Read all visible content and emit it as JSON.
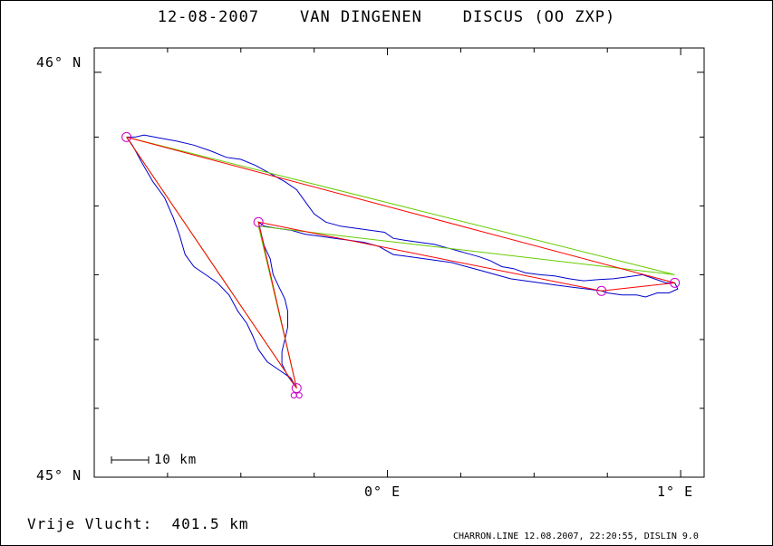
{
  "chart_data": {
    "type": "line",
    "title": "12-08-2007    VAN DINGENEN    DISCUS (OO ZXP)",
    "x_axis": {
      "min": -1.0,
      "max": 1.08,
      "ticks": [
        {
          "value": 0,
          "label": "0° E"
        },
        {
          "value": 1,
          "label": "1° E"
        }
      ]
    },
    "y_axis": {
      "min": 45.0,
      "max": 46.06,
      "ticks": [
        {
          "value": 45,
          "label": "45° N"
        },
        {
          "value": 46,
          "label": "46° N"
        }
      ]
    },
    "scale_bar": "10 km",
    "turnpoints": [
      {
        "lon": -0.89,
        "lat": 45.84
      },
      {
        "lon": 0.98,
        "lat": 45.48
      },
      {
        "lon": 0.73,
        "lat": 45.46
      },
      {
        "lon": -0.44,
        "lat": 45.63
      },
      {
        "lon": -0.31,
        "lat": 45.22
      }
    ],
    "series": [
      {
        "color": "#0000cc",
        "points": [
          [
            -0.89,
            45.84
          ],
          [
            -0.86,
            45.84
          ],
          [
            -0.83,
            45.845
          ],
          [
            -0.78,
            45.838
          ],
          [
            -0.72,
            45.83
          ],
          [
            -0.66,
            45.82
          ],
          [
            -0.6,
            45.805
          ],
          [
            -0.55,
            45.79
          ],
          [
            -0.5,
            45.785
          ],
          [
            -0.45,
            45.77
          ],
          [
            -0.4,
            45.75
          ],
          [
            -0.35,
            45.73
          ],
          [
            -0.31,
            45.71
          ],
          [
            -0.28,
            45.68
          ],
          [
            -0.25,
            45.65
          ],
          [
            -0.21,
            45.63
          ],
          [
            -0.16,
            45.62
          ],
          [
            -0.11,
            45.615
          ],
          [
            -0.06,
            45.61
          ],
          [
            -0.01,
            45.605
          ],
          [
            0.02,
            45.59
          ],
          [
            0.06,
            45.585
          ],
          [
            0.11,
            45.58
          ],
          [
            0.16,
            45.575
          ],
          [
            0.21,
            45.565
          ],
          [
            0.26,
            45.555
          ],
          [
            0.31,
            45.545
          ],
          [
            0.35,
            45.535
          ],
          [
            0.39,
            45.52
          ],
          [
            0.43,
            45.515
          ],
          [
            0.47,
            45.505
          ],
          [
            0.52,
            45.5
          ],
          [
            0.57,
            45.497
          ],
          [
            0.62,
            45.49
          ],
          [
            0.67,
            45.485
          ],
          [
            0.72,
            45.488
          ],
          [
            0.77,
            45.49
          ],
          [
            0.82,
            45.495
          ],
          [
            0.87,
            45.5
          ],
          [
            0.91,
            45.49
          ],
          [
            0.95,
            45.48
          ],
          [
            0.98,
            45.48
          ],
          [
            0.99,
            45.465
          ],
          [
            0.96,
            45.455
          ],
          [
            0.92,
            45.455
          ],
          [
            0.88,
            45.445
          ],
          [
            0.85,
            45.45
          ],
          [
            0.8,
            45.45
          ],
          [
            0.75,
            45.455
          ],
          [
            0.73,
            45.46
          ],
          [
            0.68,
            45.465
          ],
          [
            0.62,
            45.47
          ],
          [
            0.57,
            45.475
          ],
          [
            0.52,
            45.48
          ],
          [
            0.47,
            45.485
          ],
          [
            0.42,
            45.49
          ],
          [
            0.37,
            45.5
          ],
          [
            0.32,
            45.51
          ],
          [
            0.27,
            45.52
          ],
          [
            0.22,
            45.53
          ],
          [
            0.17,
            45.535
          ],
          [
            0.12,
            45.54
          ],
          [
            0.07,
            45.545
          ],
          [
            0.02,
            45.55
          ],
          [
            -0.03,
            45.57
          ],
          [
            -0.08,
            45.58
          ],
          [
            -0.13,
            45.585
          ],
          [
            -0.18,
            45.59
          ],
          [
            -0.23,
            45.595
          ],
          [
            -0.28,
            45.6
          ],
          [
            -0.33,
            45.61
          ],
          [
            -0.38,
            45.615
          ],
          [
            -0.42,
            45.62
          ],
          [
            -0.44,
            45.63
          ],
          [
            -0.43,
            45.6
          ],
          [
            -0.42,
            45.57
          ],
          [
            -0.4,
            45.54
          ],
          [
            -0.39,
            45.5
          ],
          [
            -0.37,
            45.47
          ],
          [
            -0.35,
            45.44
          ],
          [
            -0.34,
            45.41
          ],
          [
            -0.34,
            45.37
          ],
          [
            -0.35,
            45.34
          ],
          [
            -0.36,
            45.31
          ],
          [
            -0.36,
            45.28
          ],
          [
            -0.34,
            45.25
          ],
          [
            -0.32,
            45.23
          ],
          [
            -0.31,
            45.22
          ],
          [
            -0.33,
            45.245
          ],
          [
            -0.37,
            45.265
          ],
          [
            -0.41,
            45.285
          ],
          [
            -0.44,
            45.315
          ],
          [
            -0.46,
            45.35
          ],
          [
            -0.48,
            45.38
          ],
          [
            -0.51,
            45.41
          ],
          [
            -0.54,
            45.45
          ],
          [
            -0.58,
            45.48
          ],
          [
            -0.62,
            45.5
          ],
          [
            -0.66,
            45.52
          ],
          [
            -0.69,
            45.55
          ],
          [
            -0.71,
            45.6
          ],
          [
            -0.73,
            45.64
          ],
          [
            -0.76,
            45.69
          ],
          [
            -0.8,
            45.73
          ],
          [
            -0.84,
            45.78
          ],
          [
            -0.87,
            45.82
          ],
          [
            -0.89,
            45.84
          ]
        ]
      },
      {
        "color": "#66cc00",
        "points": [
          [
            -0.89,
            45.84
          ],
          [
            0.98,
            45.5
          ],
          [
            -0.44,
            45.62
          ],
          [
            -0.31,
            45.22
          ],
          [
            -0.89,
            45.84
          ]
        ]
      },
      {
        "color": "#ff0000",
        "points": [
          [
            -0.89,
            45.84
          ],
          [
            0.98,
            45.48
          ],
          [
            0.73,
            45.46
          ],
          [
            -0.44,
            45.63
          ],
          [
            -0.31,
            45.22
          ],
          [
            -0.89,
            45.84
          ]
        ]
      }
    ]
  },
  "footer": {
    "distance": "Vrije Vlucht:  401.5 km",
    "credit": "CHARRON.LINE 12.08.2007, 22:20:55, DISLIN 9.0"
  }
}
